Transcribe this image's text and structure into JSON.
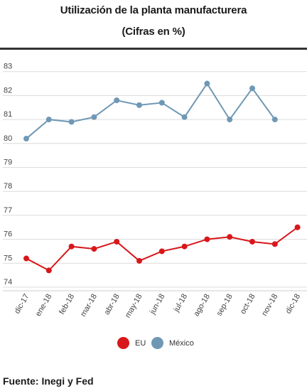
{
  "title": "Utilización de la planta manufacturera",
  "subtitle": "(Cifras en %)",
  "footer": "Fuente: Inegi y Fed",
  "chart_data": {
    "type": "line",
    "title": "Utilización de la planta manufacturera",
    "subtitle": "(Cifras en %)",
    "xlabel": "",
    "ylabel": "",
    "ylim": [
      74,
      83
    ],
    "yticks": [
      74,
      75,
      76,
      77,
      78,
      79,
      80,
      81,
      82,
      83
    ],
    "grid": true,
    "legend_position": "bottom",
    "categories": [
      "dic-17",
      "ene-18",
      "feb-18",
      "mar-18",
      "abr-18",
      "may-18",
      "jun-18",
      "jul-18",
      "ago-18",
      "sep-18",
      "oct-18",
      "nov-18",
      "dic-18"
    ],
    "series": [
      {
        "name": "EU",
        "color": "#d8171b",
        "values": [
          75.2,
          74.7,
          75.7,
          75.6,
          75.9,
          75.1,
          75.5,
          75.7,
          76.0,
          76.1,
          75.9,
          75.8,
          76.5
        ]
      },
      {
        "name": "México",
        "color": "#6f98b5",
        "values": [
          80.2,
          81.0,
          80.9,
          81.1,
          81.8,
          81.6,
          81.7,
          81.1,
          82.5,
          81.0,
          82.3,
          81.0,
          null
        ]
      }
    ]
  }
}
